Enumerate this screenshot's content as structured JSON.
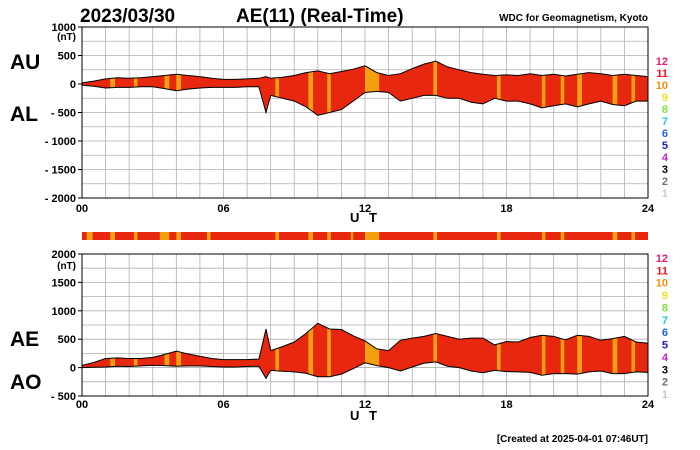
{
  "header": {
    "date": "2023/03/30",
    "title": "AE(11) (Real-Time)",
    "source": "WDC for Geomagnetism, Kyoto"
  },
  "footer": {
    "created": "[Created at 2025-04-01 07:46UT]"
  },
  "legend": {
    "levels": [
      {
        "label": "12",
        "color": "#e0207a"
      },
      {
        "label": "11",
        "color": "#e8141e"
      },
      {
        "label": "10",
        "color": "#f09010"
      },
      {
        "label": "9",
        "color": "#f0e020"
      },
      {
        "label": "8",
        "color": "#80e040"
      },
      {
        "label": "7",
        "color": "#20c8d8"
      },
      {
        "label": "6",
        "color": "#2060e0"
      },
      {
        "label": "5",
        "color": "#2020c0"
      },
      {
        "label": "4",
        "color": "#c020c0"
      },
      {
        "label": "3",
        "color": "#000000"
      },
      {
        "label": "2",
        "color": "#707070"
      },
      {
        "label": "1",
        "color": "#c8c8c8"
      }
    ]
  },
  "colors": {
    "fill_11": "#e8280e",
    "fill_10": "#f5a010"
  },
  "chart_data": [
    {
      "type": "area",
      "panel": "AU/AL",
      "series_labels": [
        "AU",
        "AL"
      ],
      "unit": "(nT)",
      "xlabel": "U T",
      "xlim": [
        0,
        24
      ],
      "xticks": [
        "00",
        "06",
        "12",
        "18",
        "24"
      ],
      "ylim": [
        -2000,
        1000
      ],
      "yticks": [
        "1000",
        "500",
        "0",
        "- 500",
        "- 1000",
        "- 1500",
        "- 2000"
      ],
      "grid": true,
      "x": [
        0,
        0.5,
        1,
        1.5,
        2,
        2.5,
        3,
        3.5,
        4,
        4.5,
        5,
        5.5,
        6,
        6.5,
        7,
        7.5,
        7.8,
        8,
        8.5,
        9,
        9.5,
        10,
        10.5,
        11,
        11.5,
        12,
        12.5,
        13,
        13.5,
        14,
        14.5,
        15,
        15.5,
        16,
        16.5,
        17,
        17.5,
        18,
        18.5,
        19,
        19.5,
        20,
        20.5,
        21,
        21.5,
        22,
        22.5,
        23,
        23.5,
        24
      ],
      "au": [
        20,
        50,
        90,
        110,
        100,
        110,
        130,
        150,
        170,
        150,
        130,
        100,
        80,
        80,
        90,
        100,
        130,
        100,
        120,
        150,
        200,
        230,
        180,
        220,
        260,
        320,
        200,
        150,
        180,
        270,
        350,
        400,
        300,
        250,
        200,
        170,
        150,
        160,
        150,
        180,
        150,
        170,
        140,
        170,
        200,
        180,
        150,
        170,
        150,
        130
      ],
      "al": [
        -20,
        -40,
        -70,
        -60,
        -60,
        -50,
        -50,
        -80,
        -120,
        -90,
        -70,
        -60,
        -60,
        -60,
        -50,
        -50,
        -500,
        -200,
        -250,
        -300,
        -400,
        -550,
        -500,
        -450,
        -300,
        -150,
        -130,
        -150,
        -300,
        -250,
        -200,
        -200,
        -250,
        -250,
        -320,
        -350,
        -250,
        -300,
        -300,
        -350,
        -420,
        -380,
        -350,
        -400,
        -350,
        -300,
        -360,
        -380,
        -300,
        -300
      ],
      "orange_intervals": [
        [
          1.2,
          1.4
        ],
        [
          2.2,
          2.35
        ],
        [
          3.5,
          3.7
        ],
        [
          4.0,
          4.2
        ],
        [
          8.2,
          8.35
        ],
        [
          9.6,
          9.8
        ],
        [
          10.4,
          10.55
        ],
        [
          12.0,
          12.6
        ],
        [
          14.9,
          15.05
        ],
        [
          17.6,
          17.75
        ],
        [
          19.5,
          19.65
        ],
        [
          20.3,
          20.45
        ],
        [
          21.0,
          21.2
        ],
        [
          22.5,
          22.7
        ],
        [
          23.3,
          23.45
        ]
      ]
    },
    {
      "type": "area",
      "panel": "AE/AO",
      "series_labels": [
        "AE",
        "AO"
      ],
      "unit": "(nT)",
      "xlabel": "U T",
      "xlim": [
        0,
        24
      ],
      "xticks": [
        "00",
        "06",
        "12",
        "18",
        "24"
      ],
      "ylim": [
        -500,
        2000
      ],
      "yticks": [
        "2000",
        "1500",
        "1000",
        "500",
        "0",
        "- 500"
      ],
      "grid": true,
      "x": [
        0,
        0.5,
        1,
        1.5,
        2,
        2.5,
        3,
        3.5,
        4,
        4.5,
        5,
        5.5,
        6,
        6.5,
        7,
        7.5,
        7.8,
        8,
        8.5,
        9,
        9.5,
        10,
        10.5,
        11,
        11.5,
        12,
        12.5,
        13,
        13.5,
        14,
        14.5,
        15,
        15.5,
        16,
        16.5,
        17,
        17.5,
        18,
        18.5,
        19,
        19.5,
        20,
        20.5,
        21,
        21.5,
        22,
        22.5,
        23,
        23.5,
        24
      ],
      "ae": [
        40,
        90,
        160,
        170,
        160,
        160,
        180,
        230,
        290,
        240,
        200,
        160,
        140,
        140,
        140,
        150,
        680,
        300,
        370,
        450,
        600,
        780,
        680,
        670,
        560,
        470,
        330,
        300,
        480,
        520,
        550,
        600,
        550,
        500,
        520,
        520,
        400,
        460,
        450,
        530,
        570,
        550,
        490,
        570,
        550,
        480,
        510,
        550,
        450,
        430
      ],
      "ao": [
        0,
        5,
        10,
        25,
        20,
        30,
        40,
        35,
        25,
        30,
        30,
        20,
        10,
        10,
        20,
        25,
        -190,
        -50,
        -65,
        -75,
        -100,
        -160,
        -160,
        -115,
        -20,
        85,
        35,
        0,
        -60,
        10,
        75,
        100,
        25,
        0,
        -60,
        -90,
        -50,
        -70,
        -75,
        -85,
        -135,
        -105,
        -105,
        -115,
        -75,
        -60,
        -105,
        -105,
        -75,
        -85
      ]
    }
  ],
  "strip": {
    "orange_intervals": [
      [
        0.2,
        0.45
      ],
      [
        1.2,
        1.4
      ],
      [
        2.2,
        2.35
      ],
      [
        3.3,
        3.7
      ],
      [
        4.0,
        4.2
      ],
      [
        5.3,
        5.45
      ],
      [
        8.2,
        8.35
      ],
      [
        9.6,
        9.8
      ],
      [
        10.4,
        10.55
      ],
      [
        11.4,
        11.5
      ],
      [
        12.0,
        12.6
      ],
      [
        14.9,
        15.05
      ],
      [
        17.6,
        17.75
      ],
      [
        19.5,
        19.65
      ],
      [
        20.3,
        20.45
      ],
      [
        22.5,
        22.7
      ],
      [
        23.3,
        23.45
      ]
    ]
  }
}
